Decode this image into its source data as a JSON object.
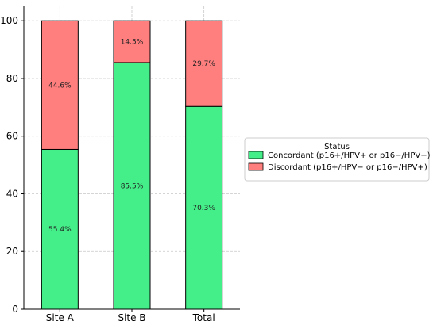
{
  "chart_data": {
    "type": "bar",
    "stacked": true,
    "categories": [
      "Site A",
      "Site B",
      "Total"
    ],
    "series": [
      {
        "name": "Concordant (p16+/HPV+ or p16−/HPV−)",
        "values": [
          55.4,
          85.5,
          70.3
        ],
        "labels": [
          "55.4%",
          "85.5%",
          "70.3%"
        ],
        "color": "#44ee88"
      },
      {
        "name": "Discordant (p16+/HPV− or p16−/HPV+)",
        "values": [
          44.6,
          14.5,
          29.7
        ],
        "labels": [
          "44.6%",
          "14.5%",
          "29.7%"
        ],
        "color": "#ff7f7f"
      }
    ],
    "yticks": [
      0,
      20,
      40,
      60,
      80,
      100
    ],
    "ylim": [
      0,
      105
    ],
    "grid": true,
    "legend": {
      "title": "Status",
      "placement": "right"
    }
  }
}
